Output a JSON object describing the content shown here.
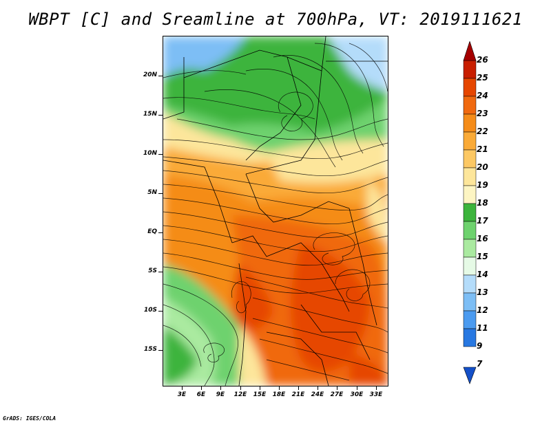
{
  "title": "WBPT [C] and Sreamline at 700hPa, VT: 2019111621",
  "credit": "GrADS: IGES/COLA",
  "map": {
    "lat_labels": [
      "20N",
      "15N",
      "10N",
      "5N",
      "EQ",
      "5S",
      "10S",
      "15S"
    ],
    "lon_labels": [
      "3E",
      "6E",
      "9E",
      "12E",
      "15E",
      "18E",
      "21E",
      "24E",
      "27E",
      "30E",
      "33E"
    ],
    "variable": "WBPT",
    "units": "C",
    "level": "700hPa",
    "valid_time": "2019111621"
  },
  "colorbar": {
    "labels": [
      "26",
      "25",
      "24",
      "23",
      "22",
      "21",
      "20",
      "19",
      "18",
      "17",
      "16",
      "15",
      "14",
      "13",
      "12",
      "11",
      "9",
      "7"
    ],
    "colors": [
      "#a50000",
      "#c81e00",
      "#e64600",
      "#f0690f",
      "#f58c19",
      "#faaa37",
      "#fcc864",
      "#fde69b",
      "#fdf5c3",
      "#3cb43c",
      "#6ed26e",
      "#aaeaa0",
      "#e6fae6",
      "#b4dcfa",
      "#7dbef5",
      "#4b9bf0",
      "#2878e1",
      "#1450c8"
    ]
  },
  "colors": {
    "high": "#e64600",
    "mid": "#faaa37",
    "low": "#6ed26e",
    "cold": "#7dbef5"
  }
}
